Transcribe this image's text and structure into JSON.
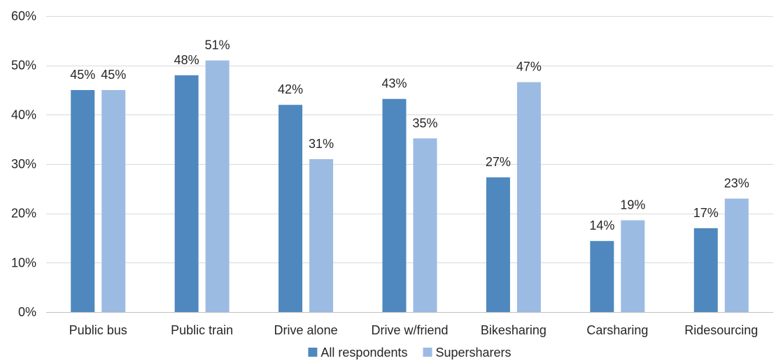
{
  "chart_data": {
    "type": "bar",
    "title": "",
    "xlabel": "",
    "ylabel": "",
    "categories": [
      "Public bus",
      "Public train",
      "Drive alone",
      "Drive w/friend",
      "Bikesharing",
      "Carsharing",
      "Ridesourcing"
    ],
    "series": [
      {
        "name": "All respondents",
        "color": "#4e88be",
        "values": [
          45,
          48,
          42,
          43.2,
          27.3,
          14.4,
          17
        ],
        "labels": [
          "45%",
          "48%",
          "42%",
          "43%",
          "27%",
          "14%",
          "17%"
        ]
      },
      {
        "name": "Supersharers",
        "color": "#9bbbe3",
        "values": [
          45,
          51,
          31,
          35.2,
          46.6,
          18.6,
          23
        ],
        "labels": [
          "45%",
          "51%",
          "31%",
          "35%",
          "47%",
          "19%",
          "23%"
        ]
      }
    ],
    "ylim": [
      0,
      60
    ],
    "yticks": [
      0,
      10,
      20,
      30,
      40,
      50,
      60
    ],
    "ytick_labels": [
      "0%",
      "10%",
      "20%",
      "30%",
      "40%",
      "50%",
      "60%"
    ],
    "grid": true,
    "legend_position": "bottom"
  }
}
